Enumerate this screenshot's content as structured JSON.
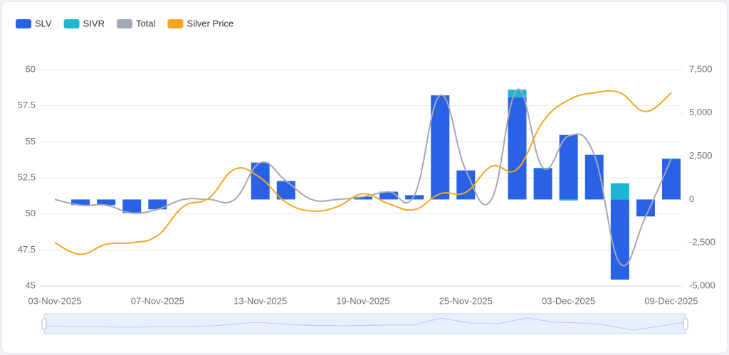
{
  "chart_data": {
    "type": "bar",
    "categories": [
      "03-Nov-2025",
      null,
      null,
      null,
      "07-Nov-2025",
      null,
      null,
      null,
      "13-Nov-2025",
      null,
      null,
      null,
      "19-Nov-2025",
      null,
      null,
      null,
      "25-Nov-2025",
      null,
      null,
      null,
      "03-Dec-2025",
      null,
      null,
      null,
      "09-Dec-2025"
    ],
    "series": [
      {
        "name": "SLV",
        "color": "#2a62e6",
        "axis": "y2",
        "kind": "bar",
        "values": [
          null,
          -330,
          -330,
          -780,
          -570,
          null,
          null,
          null,
          2130,
          1070,
          null,
          null,
          160,
          450,
          250,
          6020,
          1680,
          null,
          5900,
          1800,
          3730,
          2580,
          -4630,
          -980,
          2340
        ]
      },
      {
        "name": "SIVR",
        "color": "#1db6d2",
        "axis": "y2",
        "kind": "bar",
        "values": [
          null,
          0,
          0,
          0,
          0,
          null,
          null,
          null,
          0,
          0,
          null,
          null,
          0,
          0,
          0,
          0,
          0,
          null,
          450,
          30,
          -60,
          0,
          940,
          0,
          30
        ]
      },
      {
        "name": "Total",
        "color": "#a4a8b4",
        "axis": "y2",
        "kind": "line",
        "values": [
          0,
          -330,
          -330,
          -780,
          -570,
          0,
          0,
          0,
          2130,
          1070,
          0,
          0,
          160,
          450,
          250,
          6020,
          1680,
          0,
          6350,
          1830,
          3670,
          2580,
          -3690,
          -980,
          2370
        ]
      },
      {
        "name": "Silver Price",
        "color": "#f5a623",
        "axis": "y",
        "kind": "line",
        "values": [
          48.0,
          47.2,
          47.9,
          48.0,
          48.5,
          50.5,
          51.1,
          53.1,
          52.5,
          50.8,
          50.2,
          50.5,
          51.4,
          50.7,
          50.3,
          51.4,
          51.5,
          53.3,
          53.1,
          56.4,
          57.9,
          58.4,
          58.4,
          57.1,
          58.4
        ]
      }
    ],
    "ylim": [
      45,
      60
    ],
    "yticks": [
      45,
      47.5,
      50,
      52.5,
      55,
      57.5,
      60
    ],
    "y2lim": [
      -5000,
      7500
    ],
    "y2ticks": [
      {
        "value": -5000,
        "label": "-5,000"
      },
      {
        "value": -2500,
        "label": "-2,500"
      },
      0,
      {
        "value": 2500,
        "label": "2,500"
      },
      {
        "value": 5000,
        "label": "5,000"
      },
      {
        "value": 7500,
        "label": "7,500"
      }
    ],
    "grid": true,
    "legend": "top-left"
  }
}
